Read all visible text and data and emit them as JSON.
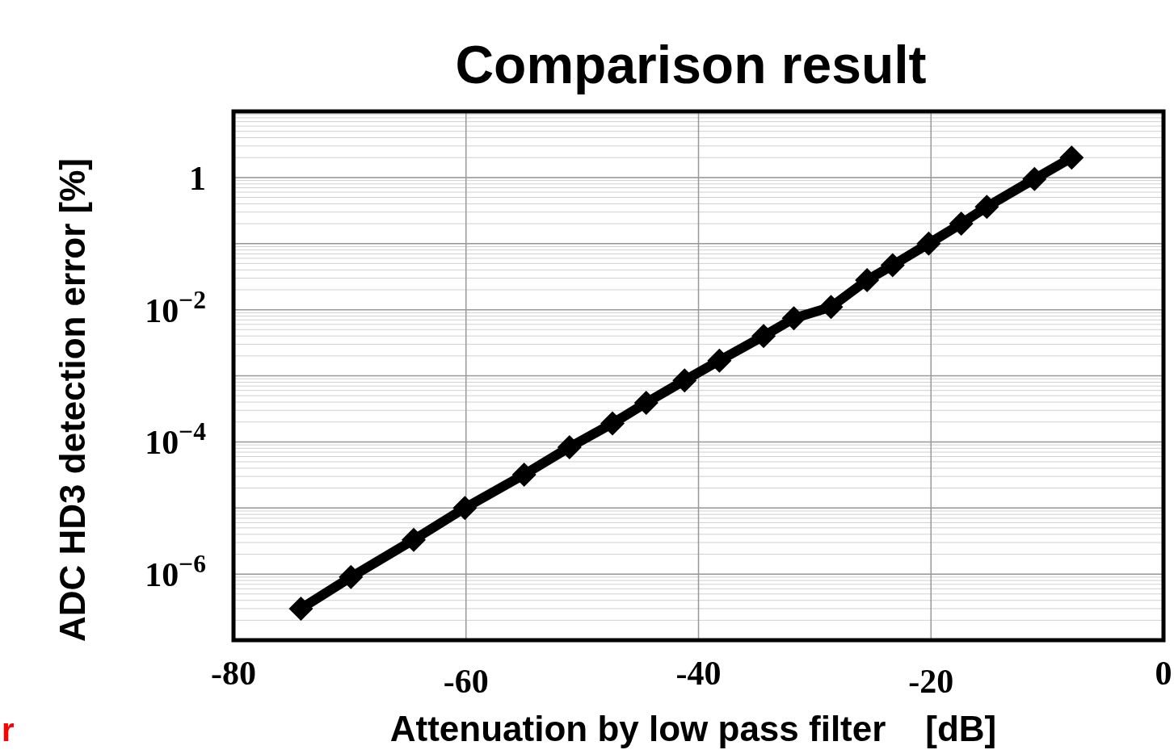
{
  "chart_data": {
    "type": "line",
    "title": "Comparison result",
    "xlabel": "Attenuation by low pass filter    [dB]",
    "ylabel": "ADC HD3 detection error [%]",
    "x": [
      -74.2,
      -69.9,
      -64.5,
      -60.1,
      -55.0,
      -51.1,
      -47.4,
      -44.5,
      -41.2,
      -38.2,
      -34.4,
      -31.8,
      -28.6,
      -25.5,
      -23.3,
      -20.2,
      -17.4,
      -15.2,
      -11.1,
      -7.9
    ],
    "series": [
      {
        "color": "#000000",
        "values": [
          3e-07,
          9e-07,
          3.3e-06,
          1e-05,
          3.2e-05,
          8.3e-05,
          0.00019,
          0.00039,
          0.00085,
          0.0017,
          0.004,
          0.0074,
          0.011,
          0.028,
          0.047,
          0.1,
          0.2,
          0.36,
          0.95,
          2.0
        ]
      }
    ],
    "xlim": [
      -80,
      0
    ],
    "xticks": [
      -80,
      -60,
      -40,
      -20,
      0
    ],
    "ylim": [
      1e-07,
      10
    ],
    "yticks": [
      {
        "value": 1,
        "label": "1"
      },
      {
        "value": 0.01,
        "label": "10$^{−2}$"
      },
      {
        "value": 0.0001,
        "label": "10$^{−4}$"
      },
      {
        "value": 1e-06,
        "label": "10$^{−6}$"
      }
    ],
    "log": "y",
    "grid": true,
    "marker": "diamond",
    "line_style": "solid",
    "annotations": [
      "r"
    ]
  }
}
